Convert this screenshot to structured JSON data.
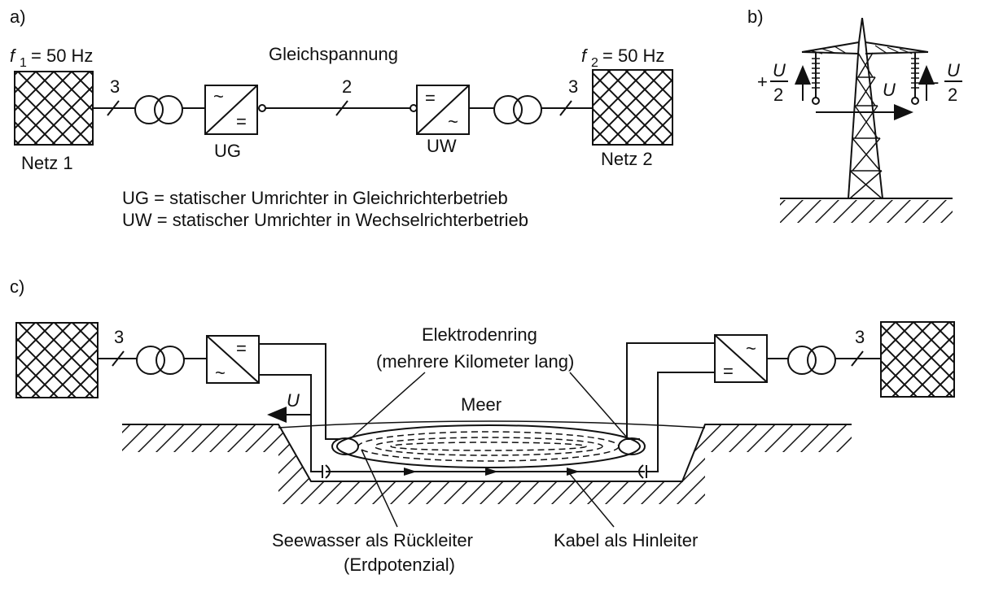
{
  "panel_a": {
    "label": "a)",
    "f1": {
      "symbol": "f",
      "sub": "1",
      "value": "= 50 Hz"
    },
    "f2": {
      "symbol": "f",
      "sub": "2",
      "value": "= 50 Hz"
    },
    "net1": "Netz 1",
    "net2": "Netz 2",
    "dc_title": "Gleichspannung",
    "phase_left": "3",
    "phase_right": "3",
    "dc_conductors": "2",
    "ug_label": "UG",
    "uw_label": "UW",
    "legend_ug": "UG = statischer Umrichter in Gleichrichterbetrieb",
    "legend_uw": "UW = statischer Umrichter in Wechselrichterbetrieb"
  },
  "panel_b": {
    "label": "b)",
    "plus_sign": "+",
    "minus_sign": "-",
    "frac_num": "U",
    "frac_den": "2",
    "u_label": "U"
  },
  "panel_c": {
    "label": "c)",
    "phase_left": "3",
    "phase_right": "3",
    "u_label": "U",
    "electrode_title": "Elektrodenring",
    "electrode_sub": "(mehrere Kilometer lang)",
    "sea": "Meer",
    "return_label": "Seewasser als Rückleiter",
    "return_sub": "(Erdpotenzial)",
    "cable_label": "Kabel als Hinleiter"
  },
  "symbols": {
    "ac": "~",
    "dc": "="
  }
}
